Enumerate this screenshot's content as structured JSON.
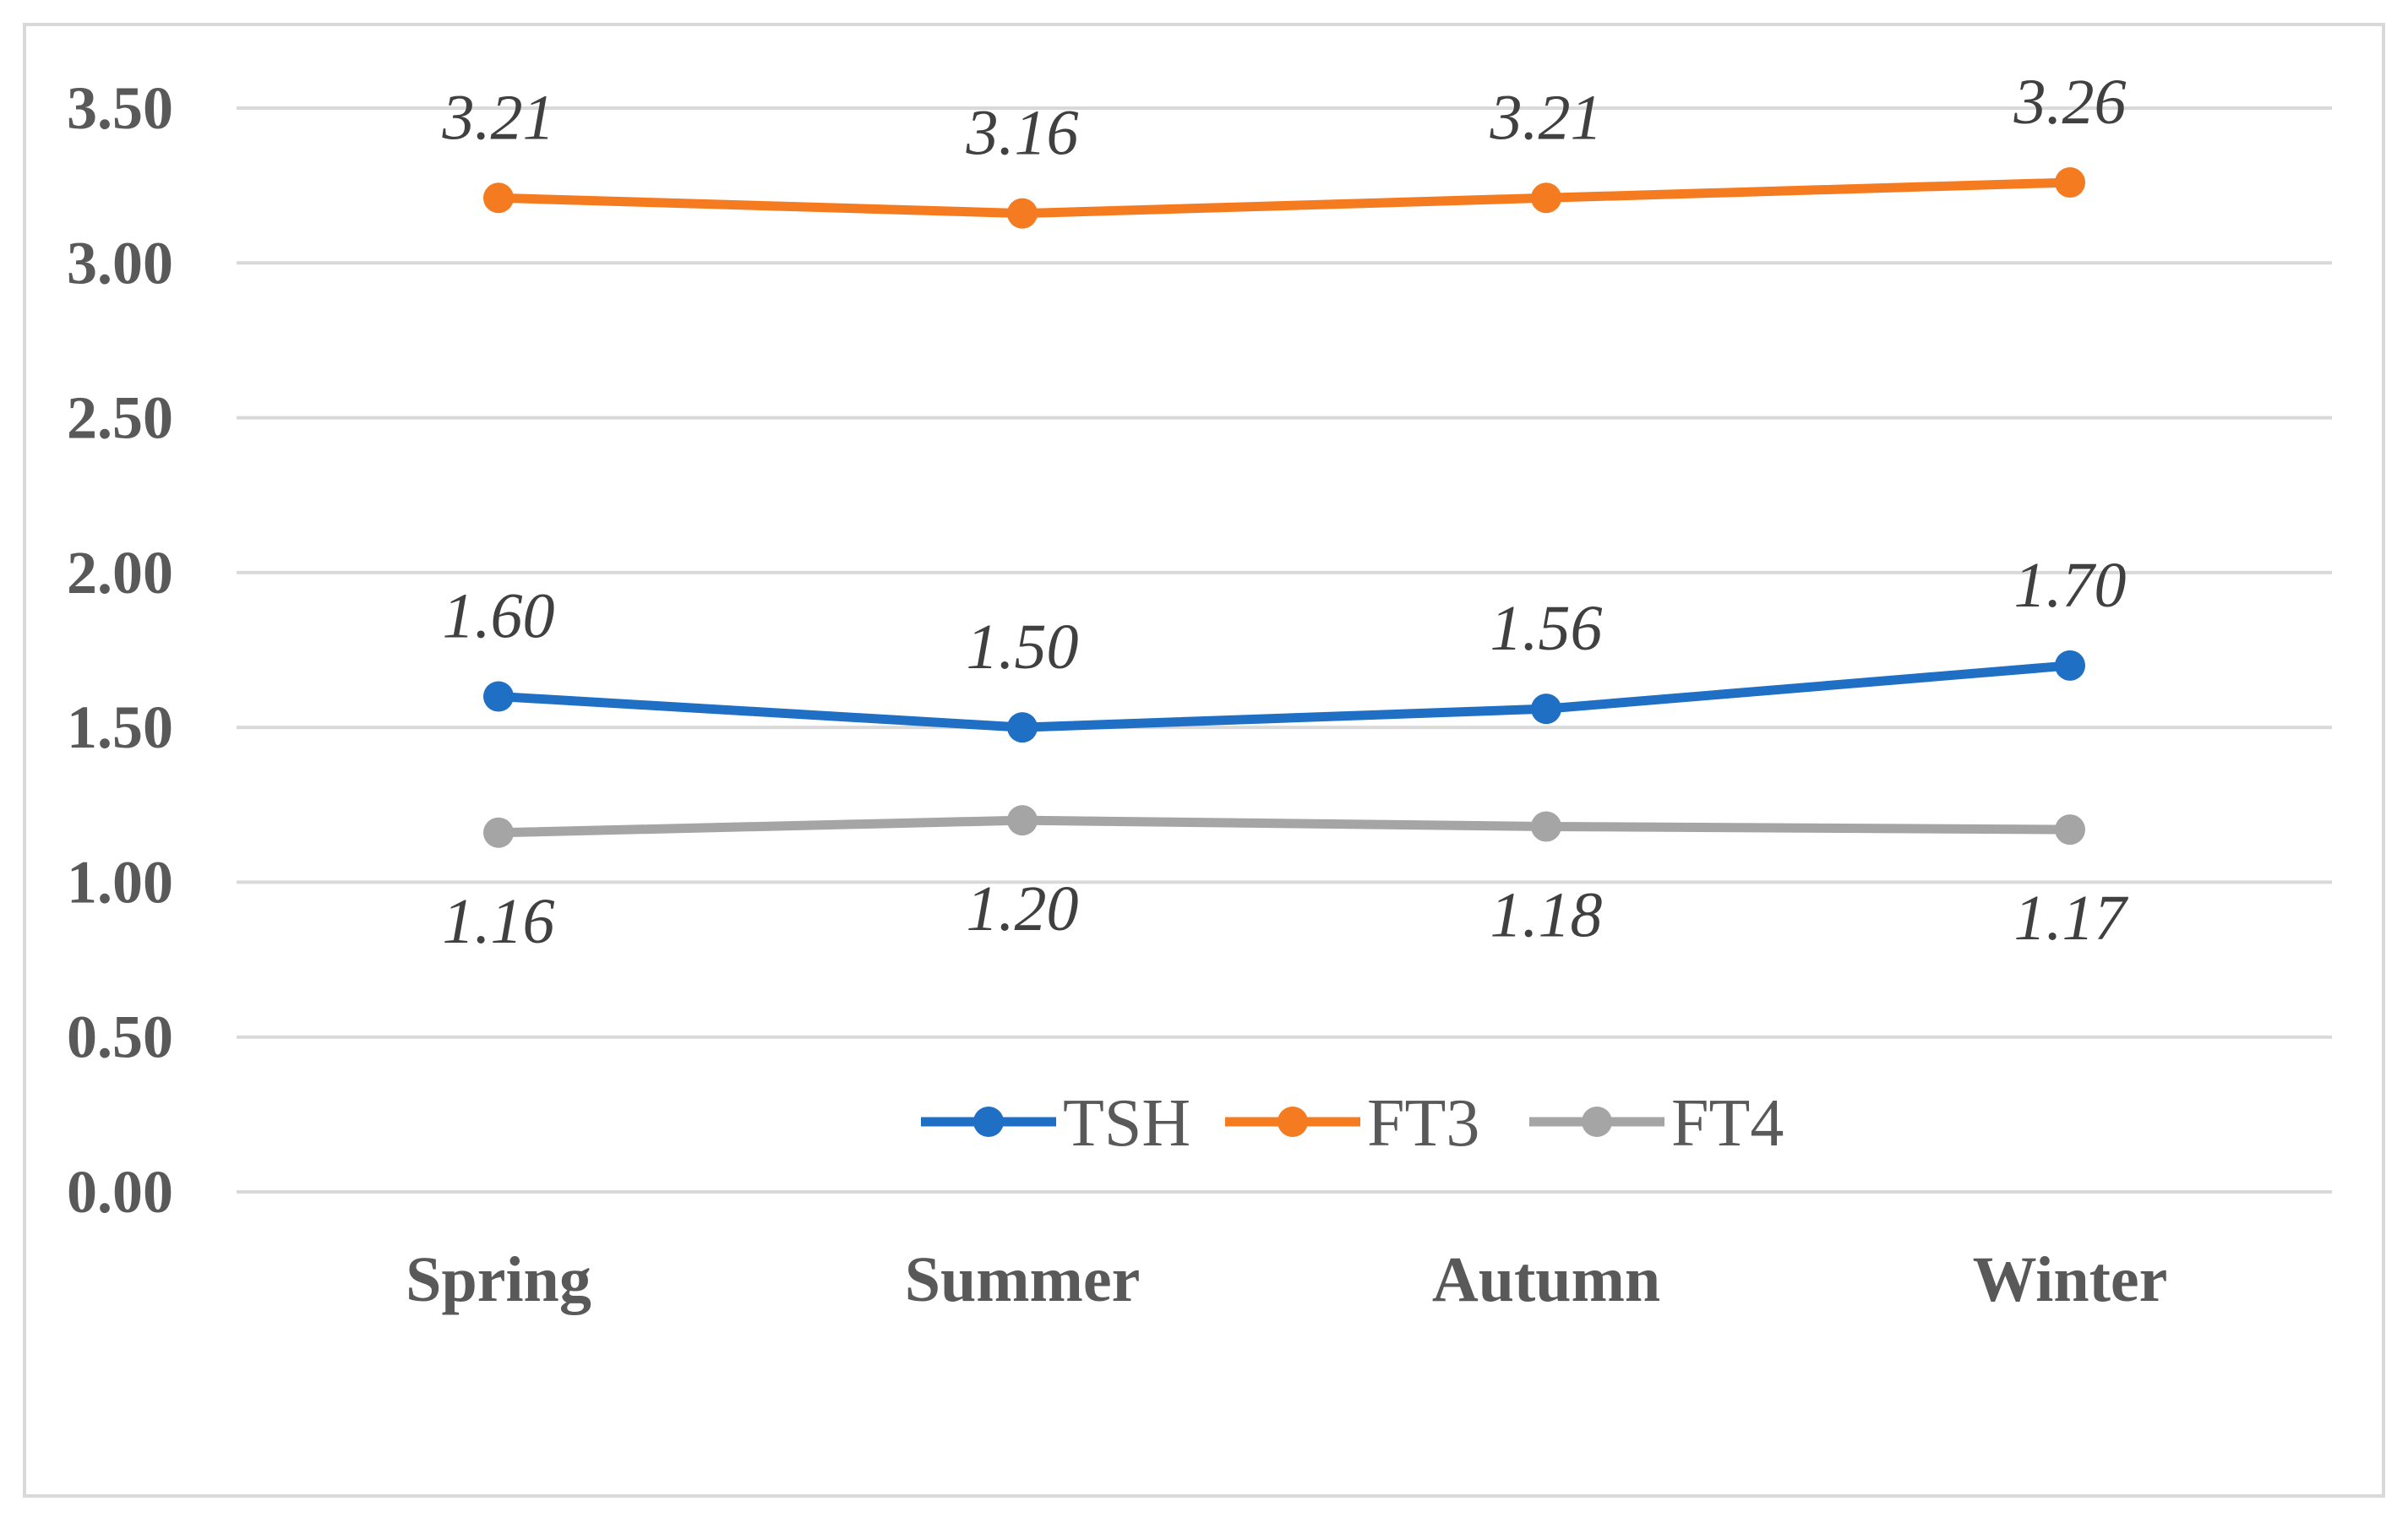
{
  "chart_data": {
    "type": "line",
    "title": "",
    "xlabel": "",
    "ylabel": "",
    "categories": [
      "Spring",
      "Summer",
      "Autumn",
      "Winter"
    ],
    "ylim": [
      0,
      3.5
    ],
    "yticks": [
      "0.00",
      "0.50",
      "1.00",
      "1.50",
      "2.00",
      "2.50",
      "3.00",
      "3.50"
    ],
    "grid": true,
    "legend_position": "bottom-center",
    "series": [
      {
        "name": "TSH",
        "color": "#1f6fc5",
        "values": [
          1.6,
          1.5,
          1.56,
          1.7
        ],
        "labels": [
          "1.60",
          "1.50",
          "1.56",
          "1.70"
        ],
        "label_position": "above"
      },
      {
        "name": "FT3",
        "color": "#f47b20",
        "values": [
          3.21,
          3.16,
          3.21,
          3.26
        ],
        "labels": [
          "3.21",
          "3.16",
          "3.21",
          "3.26"
        ],
        "label_position": "above"
      },
      {
        "name": "FT4",
        "color": "#a5a5a5",
        "values": [
          1.16,
          1.2,
          1.18,
          1.17
        ],
        "labels": [
          "1.16",
          "1.20",
          "1.18",
          "1.17"
        ],
        "label_position": "below"
      }
    ]
  }
}
